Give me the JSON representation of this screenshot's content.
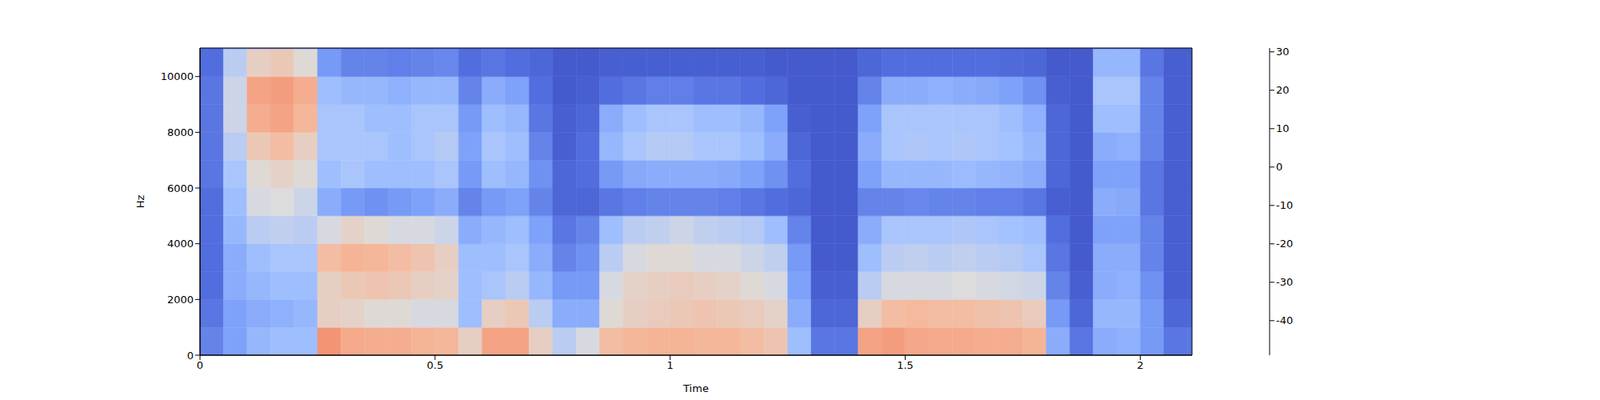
{
  "chart_data": {
    "type": "heatmap",
    "x_label": "Time",
    "y_label": "Hz",
    "color": "coolwarm",
    "xlim": [
      0,
      2.11
    ],
    "xticks": [
      0,
      0.5,
      1,
      1.5,
      2
    ],
    "ylim": [
      0,
      11025
    ],
    "yticks": [
      0,
      2000,
      4000,
      6000,
      8000,
      10000
    ],
    "time_edges": [
      0,
      0.05,
      0.1,
      0.15,
      0.2,
      0.25,
      0.3,
      0.35,
      0.4,
      0.45,
      0.5,
      0.55,
      0.6,
      0.65,
      0.7,
      0.75,
      0.8,
      0.85,
      0.9,
      0.95,
      1,
      1.05,
      1.1,
      1.15,
      1.2,
      1.25,
      1.3,
      1.35,
      1.4,
      1.45,
      1.5,
      1.55,
      1.6,
      1.65,
      1.7,
      1.75,
      1.8,
      1.85,
      1.9,
      1.95,
      2,
      2.05,
      2.1,
      2.11
    ],
    "freq_edges": [
      0,
      1000,
      2000,
      3000,
      4000,
      5000,
      6000,
      7000,
      8000,
      9000,
      10000,
      11000,
      11025
    ],
    "cells": [
      [
        -35,
        -38,
        -40,
        -40,
        -40,
        -40,
        -38,
        -38,
        -38,
        -38,
        -40,
        -45
      ],
      [
        -28,
        -28,
        -25,
        -25,
        -22,
        -20,
        -18,
        -15,
        -12,
        -12,
        -15,
        -40
      ],
      [
        -22,
        -25,
        -22,
        -20,
        -15,
        -10,
        -8,
        -3,
        5,
        8,
        -5,
        -40
      ],
      [
        -20,
        -24,
        -20,
        -18,
        -14,
        -9,
        -6,
        0,
        8,
        10,
        -3,
        -40
      ],
      [
        -20,
        -22,
        -20,
        -18,
        -15,
        -12,
        -8,
        -5,
        2,
        5,
        -8,
        -40
      ],
      [
        12,
        -5,
        -5,
        0,
        -10,
        -25,
        -20,
        -18,
        -18,
        -20,
        -30,
        -45
      ],
      [
        6,
        -6,
        -3,
        3,
        -6,
        -30,
        -18,
        -18,
        -18,
        -22,
        -35,
        -45
      ],
      [
        5,
        -8,
        -2,
        2,
        -8,
        -32,
        -20,
        -18,
        -20,
        -22,
        -35,
        -45
      ],
      [
        5,
        -8,
        -3,
        0,
        -10,
        -30,
        -20,
        -20,
        -20,
        -24,
        -36,
        -45
      ],
      [
        3,
        -10,
        -5,
        -2,
        -10,
        -28,
        -20,
        -18,
        -18,
        -22,
        -35,
        -45
      ],
      [
        2,
        -10,
        -6,
        -5,
        -12,
        -25,
        -18,
        -16,
        -18,
        -22,
        -34,
        -45
      ],
      [
        -5,
        -20,
        -20,
        -20,
        -25,
        -35,
        -30,
        -28,
        -30,
        -35,
        -40,
        -45
      ],
      [
        8,
        -5,
        -18,
        -20,
        -22,
        -30,
        -20,
        -18,
        -20,
        -25,
        -38,
        -45
      ],
      [
        8,
        -3,
        -15,
        -18,
        -20,
        -28,
        -22,
        -20,
        -22,
        -28,
        -40,
        -45
      ],
      [
        -5,
        -15,
        -22,
        -25,
        -28,
        -35,
        -32,
        -35,
        -38,
        -40,
        -42,
        -45
      ],
      [
        -15,
        -25,
        -30,
        -35,
        -38,
        -42,
        -42,
        -44,
        -44,
        -45,
        -45,
        -46
      ],
      [
        -10,
        -25,
        -30,
        -32,
        -35,
        -42,
        -40,
        -40,
        -42,
        -44,
        -45,
        -46
      ],
      [
        0,
        -8,
        -10,
        -15,
        -20,
        -38,
        -30,
        -22,
        -25,
        -40,
        -44,
        -46
      ],
      [
        2,
        -5,
        -6,
        -10,
        -15,
        -36,
        -26,
        -18,
        -20,
        -38,
        -44,
        -46
      ],
      [
        3,
        -4,
        -5,
        -8,
        -14,
        -35,
        -25,
        -16,
        -18,
        -36,
        -44,
        -46
      ],
      [
        3,
        -3,
        -4,
        -8,
        -12,
        -35,
        -25,
        -16,
        -18,
        -36,
        -44,
        -46
      ],
      [
        2,
        -2,
        -5,
        -10,
        -14,
        -35,
        -25,
        -18,
        -20,
        -38,
        -44,
        -46
      ],
      [
        2,
        -3,
        -6,
        -10,
        -15,
        -36,
        -26,
        -18,
        -20,
        -38,
        -44,
        -46
      ],
      [
        0,
        -4,
        -8,
        -12,
        -16,
        -38,
        -28,
        -20,
        -22,
        -40,
        -44,
        -46
      ],
      [
        -2,
        -6,
        -10,
        -14,
        -20,
        -40,
        -32,
        -25,
        -28,
        -42,
        -45,
        -46
      ],
      [
        -20,
        -25,
        -28,
        -30,
        -35,
        -42,
        -40,
        -42,
        -44,
        -45,
        -45,
        -46
      ],
      [
        -38,
        -42,
        -44,
        -45,
        -45,
        -45,
        -45,
        -45,
        -45,
        -45,
        -45,
        -46
      ],
      [
        -38,
        -42,
        -44,
        -45,
        -45,
        -45,
        -45,
        -45,
        -45,
        -45,
        -45,
        -46
      ],
      [
        8,
        -5,
        -15,
        -20,
        -25,
        -35,
        -28,
        -25,
        -28,
        -35,
        -42,
        -46
      ],
      [
        10,
        0,
        -10,
        -15,
        -18,
        -35,
        -22,
        -18,
        -18,
        -25,
        -40,
        -46
      ],
      [
        7,
        1,
        -10,
        -14,
        -18,
        -34,
        -22,
        -17,
        -18,
        -25,
        -40,
        -46
      ],
      [
        6,
        0,
        -10,
        -15,
        -18,
        -35,
        -22,
        -18,
        -18,
        -24,
        -40,
        -46
      ],
      [
        6,
        0,
        -9,
        -14,
        -17,
        -35,
        -21,
        -17,
        -18,
        -25,
        -40,
        -46
      ],
      [
        5,
        -1,
        -10,
        -15,
        -18,
        -36,
        -22,
        -18,
        -18,
        -26,
        -40,
        -46
      ],
      [
        5,
        -2,
        -11,
        -16,
        -19,
        -36,
        -23,
        -19,
        -20,
        -28,
        -41,
        -46
      ],
      [
        3,
        -4,
        -12,
        -18,
        -20,
        -38,
        -25,
        -22,
        -24,
        -32,
        -42,
        -46
      ],
      [
        -25,
        -30,
        -35,
        -38,
        -40,
        -44,
        -42,
        -42,
        -42,
        -44,
        -45,
        -46
      ],
      [
        -38,
        -42,
        -44,
        -45,
        -45,
        -45,
        -45,
        -45,
        -45,
        -45,
        -45,
        -46
      ],
      [
        -25,
        -22,
        -25,
        -25,
        -28,
        -25,
        -28,
        -25,
        -20,
        -18,
        -22,
        -45
      ],
      [
        -24,
        -22,
        -24,
        -25,
        -28,
        -26,
        -28,
        -24,
        -20,
        -18,
        -22,
        -45
      ],
      [
        -30,
        -30,
        -32,
        -35,
        -35,
        -38,
        -38,
        -35,
        -35,
        -35,
        -38,
        -46
      ],
      [
        -38,
        -42,
        -44,
        -44,
        -44,
        -44,
        -44,
        -44,
        -44,
        -44,
        -44,
        -46
      ],
      [
        -38,
        -42,
        -44,
        -44,
        -44,
        -44,
        -44,
        -44,
        -44,
        -44,
        -44,
        -46
      ]
    ],
    "colorbar": {
      "range": [
        -49,
        31
      ],
      "ticks": [
        -40,
        -30,
        -20,
        -10,
        0,
        10,
        20,
        30
      ]
    }
  }
}
